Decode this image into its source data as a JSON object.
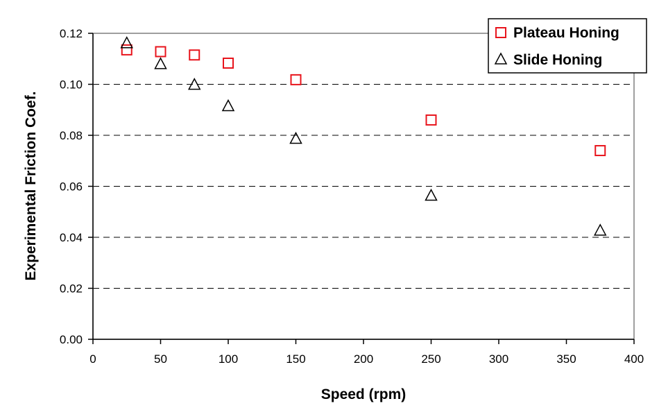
{
  "chart_data": {
    "type": "scatter",
    "xlabel": "Speed (rpm)",
    "ylabel": "Experimental Friction Coef.",
    "xlim": [
      0,
      400
    ],
    "ylim": [
      0,
      0.12
    ],
    "x_ticks": [
      "0",
      "50",
      "100",
      "150",
      "200",
      "250",
      "300",
      "350",
      "400"
    ],
    "x_tick_values": [
      0,
      50,
      100,
      150,
      200,
      250,
      300,
      350,
      400
    ],
    "y_ticks": [
      "0.00",
      "0.02",
      "0.04",
      "0.06",
      "0.08",
      "0.10",
      "0.12"
    ],
    "y_tick_values": [
      0,
      0.02,
      0.04,
      0.06,
      0.08,
      0.1,
      0.12
    ],
    "grid": "horizontal dashed",
    "legend_position": "top-right",
    "series": [
      {
        "name": "Plateau Honing",
        "marker": "square",
        "color": "#e8141c",
        "points": [
          [
            25,
            0.1135
          ],
          [
            50,
            0.1128
          ],
          [
            75,
            0.1115
          ],
          [
            100,
            0.1083
          ],
          [
            150,
            0.1018
          ],
          [
            250,
            0.086
          ],
          [
            375,
            0.074
          ]
        ]
      },
      {
        "name": "Slide Honing",
        "marker": "triangle",
        "color": "#000000",
        "points": [
          [
            25,
            0.116
          ],
          [
            50,
            0.1078
          ],
          [
            75,
            0.0997
          ],
          [
            100,
            0.0913
          ],
          [
            150,
            0.0785
          ],
          [
            250,
            0.0562
          ],
          [
            375,
            0.0425
          ]
        ]
      }
    ]
  }
}
